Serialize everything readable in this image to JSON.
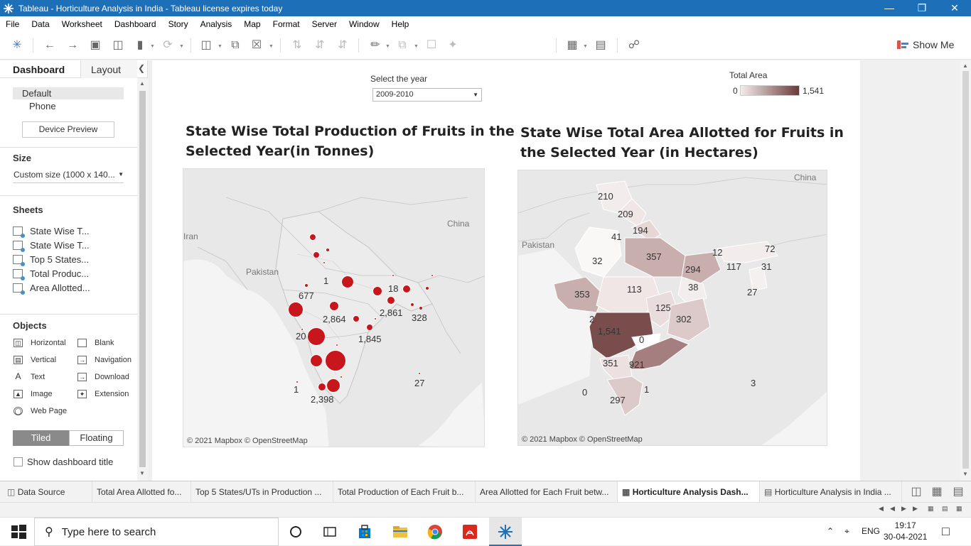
{
  "window": {
    "title": "Tableau - Horticulture Analysis in India - Tableau license expires today",
    "controls": [
      "minimize",
      "restore",
      "close"
    ]
  },
  "menu": [
    "File",
    "Data",
    "Worksheet",
    "Dashboard",
    "Story",
    "Analysis",
    "Map",
    "Format",
    "Server",
    "Window",
    "Help"
  ],
  "toolbar": {
    "show_me": "Show Me"
  },
  "left_pane": {
    "tab_dashboard": "Dashboard",
    "tab_layout": "Layout",
    "devices": {
      "default": "Default",
      "phone": "Phone",
      "preview_button": "Device Preview"
    },
    "size": {
      "title": "Size",
      "value": "Custom size (1000 x 140..."
    },
    "sheets_title": "Sheets",
    "sheets": [
      "State Wise T...",
      "State Wise T...",
      "Top 5 States...",
      "Total Produc...",
      "Area Allotted..."
    ],
    "objects_title": "Objects",
    "objects": [
      {
        "label": "Horizontal",
        "icon": "horizontal-icon"
      },
      {
        "label": "Blank",
        "icon": "blank-icon"
      },
      {
        "label": "Vertical",
        "icon": "vertical-icon"
      },
      {
        "label": "Navigation",
        "icon": "navigation-icon"
      },
      {
        "label": "Text",
        "icon": "text-icon"
      },
      {
        "label": "Download",
        "icon": "download-icon"
      },
      {
        "label": "Image",
        "icon": "image-icon"
      },
      {
        "label": "Extension",
        "icon": "extension-icon"
      },
      {
        "label": "Web Page",
        "icon": "web-page-icon"
      }
    ],
    "tiled": "Tiled",
    "floating": "Floating",
    "show_title": "Show dashboard title"
  },
  "dashboard": {
    "filter": {
      "label": "Select the year",
      "value": "2009-2010"
    },
    "legend": {
      "title": "Total Area",
      "min": "0",
      "max": "1,541",
      "color_low": "#f4ecec",
      "color_high": "#6b3a3a"
    },
    "production_map": {
      "title_line1": "State Wise Total Production of Fruits in the",
      "title_line2": "Selected Year(in Tonnes)",
      "attribution": "© 2021 Mapbox © OpenStreetMap",
      "place_labels": [
        "Pakistan",
        "China",
        "Iran"
      ],
      "value_labels": [
        "677",
        "1",
        "18",
        "2,864",
        "2,861",
        "328",
        "1,845",
        "20",
        "1",
        "2,398",
        "27"
      ],
      "bubble_color": "#c8161d"
    },
    "area_map": {
      "title_line1": "State Wise Total Area Allotted for Fruits in",
      "title_line2": "the Selected Year (in Hectares)",
      "attribution": "© 2021 Mapbox © OpenStreetMap",
      "place_labels": [
        "Pakistan",
        "China"
      ],
      "value_labels": [
        "210",
        "209",
        "194",
        "41",
        "357",
        "12",
        "72",
        "32",
        "294",
        "117",
        "31",
        "353",
        "113",
        "38",
        "27",
        "125",
        "2",
        "302",
        "1,541",
        "0",
        "351",
        "921",
        "1",
        "0",
        "297",
        "3"
      ]
    }
  },
  "bottom_tabs": {
    "data_source": "Data Source",
    "tabs": [
      "Total Area Allotted fo...",
      "Top 5 States/UTs in Production ...",
      "Total Production of Each Fruit b...",
      "Area Allotted for Each Fruit betw...",
      "Horticulture Analysis Dash...",
      "Horticulture Analysis in India ..."
    ]
  },
  "taskbar": {
    "search_placeholder": "Type here to search",
    "language": "ENG",
    "time": "19:17",
    "date": "30-04-2021"
  }
}
